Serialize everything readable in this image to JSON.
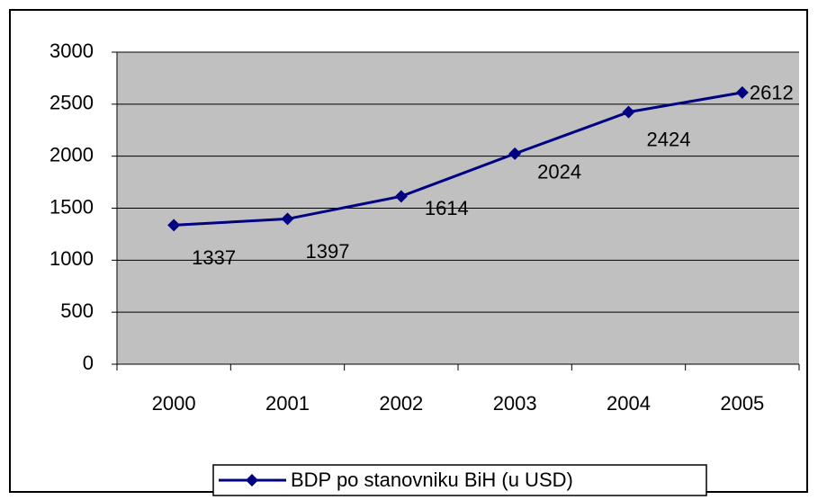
{
  "chart_data": {
    "type": "line",
    "categories": [
      "2000",
      "2001",
      "2002",
      "2003",
      "2004",
      "2005"
    ],
    "series": [
      {
        "name": "BDP po stanovniku BiH (u USD)",
        "color": "#000080",
        "values": [
          1337,
          1397,
          1614,
          2024,
          2424,
          2612
        ]
      }
    ],
    "ylim": [
      0,
      3000
    ],
    "yticks": [
      0,
      500,
      1000,
      1500,
      2000,
      2500,
      3000
    ],
    "grid": true,
    "legend": "bottom"
  }
}
